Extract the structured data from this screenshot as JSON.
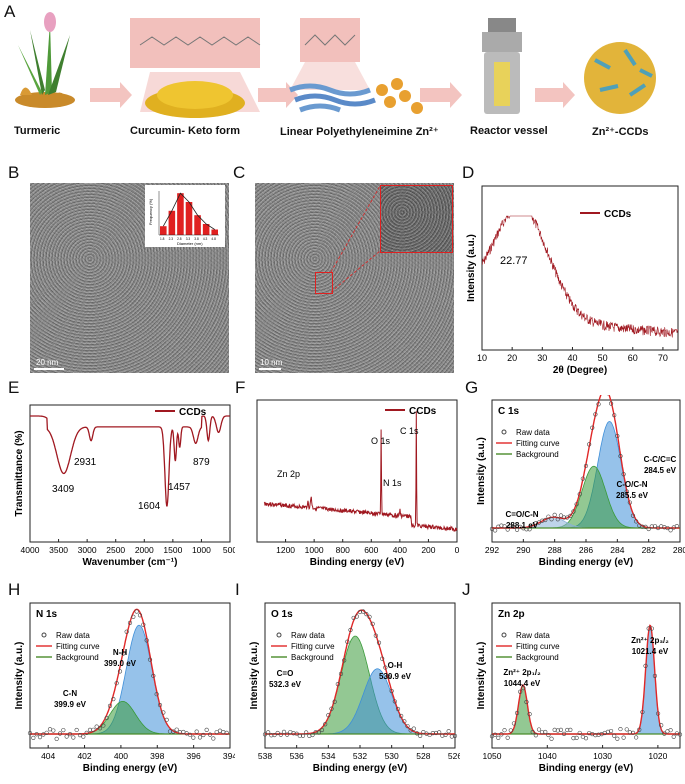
{
  "panels": {
    "A": "A",
    "B": "B",
    "C": "C",
    "D": "D",
    "E": "E",
    "F": "F",
    "G": "G",
    "H": "H",
    "I": "I",
    "J": "J"
  },
  "schematic": {
    "captions": [
      "Turmeric",
      "Curcumin- Keto form",
      "Linear Polyethyleneimine Zn²⁺",
      "Reactor vessel",
      "Zn²⁺-CCDs"
    ]
  },
  "tem": {
    "b_scale": "20 nm",
    "c_scale": "10 nm",
    "inset_xlabel": "Diameter (nm)",
    "inset_ylabel": "Frequency (%)",
    "inset_ticks": [
      "1.8",
      "2.3",
      "2.8",
      "3.3",
      "3.8",
      "4.3",
      "4.8"
    ],
    "inset_bars": [
      8,
      22,
      38,
      30,
      18,
      10,
      5
    ]
  },
  "colors": {
    "dark_red": "#a01820",
    "fit_red": "#e02828",
    "bg_green": "#4a8c2a",
    "blue": "#3f8fd8",
    "green_fill": "#3a9a3a"
  },
  "chart_data": [
    {
      "id": "D",
      "type": "line",
      "series": [
        {
          "name": "CCDs"
        }
      ],
      "xlabel": "2θ (Degree)",
      "ylabel": "Intensity (a.u.)",
      "xlim": [
        10,
        75
      ],
      "xticks": [
        "10",
        "20",
        "30",
        "40",
        "50",
        "60",
        "70"
      ],
      "annotation": "22.77",
      "peak_x": 22.77
    },
    {
      "id": "E",
      "type": "line",
      "series": [
        {
          "name": "CCDs"
        }
      ],
      "xlabel": "Wavenumber (cm⁻¹)",
      "ylabel": "Transmittance (%)",
      "xlim": [
        4000,
        500
      ],
      "xticks": [
        "4000",
        "3500",
        "3000",
        "2500",
        "2000",
        "1500",
        "1000",
        "500"
      ],
      "peaks": [
        {
          "x": 3409,
          "label": "3409"
        },
        {
          "x": 2931,
          "label": "2931"
        },
        {
          "x": 1604,
          "label": "1604"
        },
        {
          "x": 1457,
          "label": "1457"
        },
        {
          "x": 879,
          "label": "879"
        }
      ]
    },
    {
      "id": "F",
      "type": "line",
      "series": [
        {
          "name": "CCDs"
        }
      ],
      "xlabel": "Binding energy (eV)",
      "ylabel": "",
      "xlim": [
        1400,
        0
      ],
      "xticks": [
        "1200",
        "1000",
        "800",
        "600",
        "400",
        "200",
        "0"
      ],
      "peaks": [
        {
          "x": 1021,
          "label": "Zn 2p"
        },
        {
          "x": 531,
          "label": "O 1s"
        },
        {
          "x": 399,
          "label": "N 1s"
        },
        {
          "x": 284.5,
          "label": "C 1s"
        }
      ]
    },
    {
      "id": "G",
      "type": "line",
      "title": "C 1s",
      "xlabel": "Binding energy (eV)",
      "ylabel": "Intensity (a.u.)",
      "xlim": [
        292,
        280
      ],
      "xticks": [
        "292",
        "290",
        "288",
        "286",
        "284",
        "282",
        "280"
      ],
      "legend": [
        "Raw data",
        "Fitting curve",
        "Background"
      ],
      "components": [
        {
          "label": "C-C/C=C",
          "ev_text": "284.5 eV",
          "center": 284.5,
          "amp": 1.0
        },
        {
          "label": "C-O/C-N",
          "ev_text": "285.5 eV",
          "center": 285.5,
          "amp": 0.58
        },
        {
          "label": "C=O/C-N",
          "ev_text": "288.1 eV",
          "center": 288.1,
          "amp": 0.1
        }
      ]
    },
    {
      "id": "H",
      "type": "line",
      "title": "N 1s",
      "xlabel": "Binding energy (eV)",
      "ylabel": "Intensity (a.u.)",
      "xlim": [
        405,
        394
      ],
      "xticks": [
        "404",
        "402",
        "400",
        "398",
        "396",
        "394"
      ],
      "legend": [
        "Raw data",
        "Fitting curve",
        "Background"
      ],
      "components": [
        {
          "label": "N-H",
          "ev_text": "399.0 eV",
          "center": 399.0,
          "amp": 1.0
        },
        {
          "label": "C-N",
          "ev_text": "399.9 eV",
          "center": 399.9,
          "amp": 0.3
        }
      ]
    },
    {
      "id": "I",
      "type": "line",
      "title": "O 1s",
      "xlabel": "Binding energy (eV)",
      "ylabel": "Intensity (a.u.)",
      "xlim": [
        538,
        526
      ],
      "xticks": [
        "538",
        "536",
        "534",
        "532",
        "530",
        "528",
        "526"
      ],
      "legend": [
        "Raw data",
        "Fitting curve",
        "Background"
      ],
      "components": [
        {
          "label": "C=O",
          "ev_text": "532.3 eV",
          "center": 532.3,
          "amp": 0.9
        },
        {
          "label": "O-H",
          "ev_text": "530.9 eV",
          "center": 530.9,
          "amp": 0.6
        }
      ]
    },
    {
      "id": "J",
      "type": "line",
      "title": "Zn 2p",
      "xlabel": "Binding energy (eV)",
      "ylabel": "Intensity (a.u.)",
      "xlim": [
        1050,
        1016
      ],
      "xticks": [
        "1050",
        "1040",
        "1030",
        "1020"
      ],
      "legend": [
        "Raw data",
        "Fitting curve",
        "Background"
      ],
      "components": [
        {
          "label": "Zn²⁺ 2p₃/₂",
          "ev_text": "1021.4 eV",
          "center": 1021.4,
          "amp": 1.0
        },
        {
          "label": "Zn²⁺ 2p₁/₂",
          "ev_text": "1044.4 eV",
          "center": 1044.4,
          "amp": 0.45
        }
      ]
    }
  ]
}
